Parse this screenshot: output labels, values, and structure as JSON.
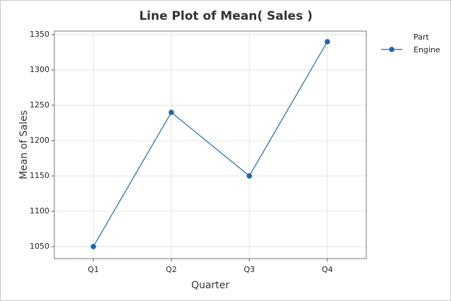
{
  "chart_data": {
    "type": "line",
    "title": "Line Plot of Mean( Sales )",
    "x_label": "Quarter",
    "y_label": "Mean of Sales",
    "categories": [
      "Q1",
      "Q2",
      "Q3",
      "Q4"
    ],
    "legend_title": "Part",
    "series": [
      {
        "name": "Engine",
        "color": "#1f64ad",
        "values": [
          1050,
          1240,
          1150,
          1340
        ]
      }
    ],
    "ylim": [
      1033,
      1355
    ],
    "yticks": [
      1050,
      1100,
      1150,
      1200,
      1250,
      1300,
      1350
    ],
    "grid": true,
    "legend": "right"
  }
}
